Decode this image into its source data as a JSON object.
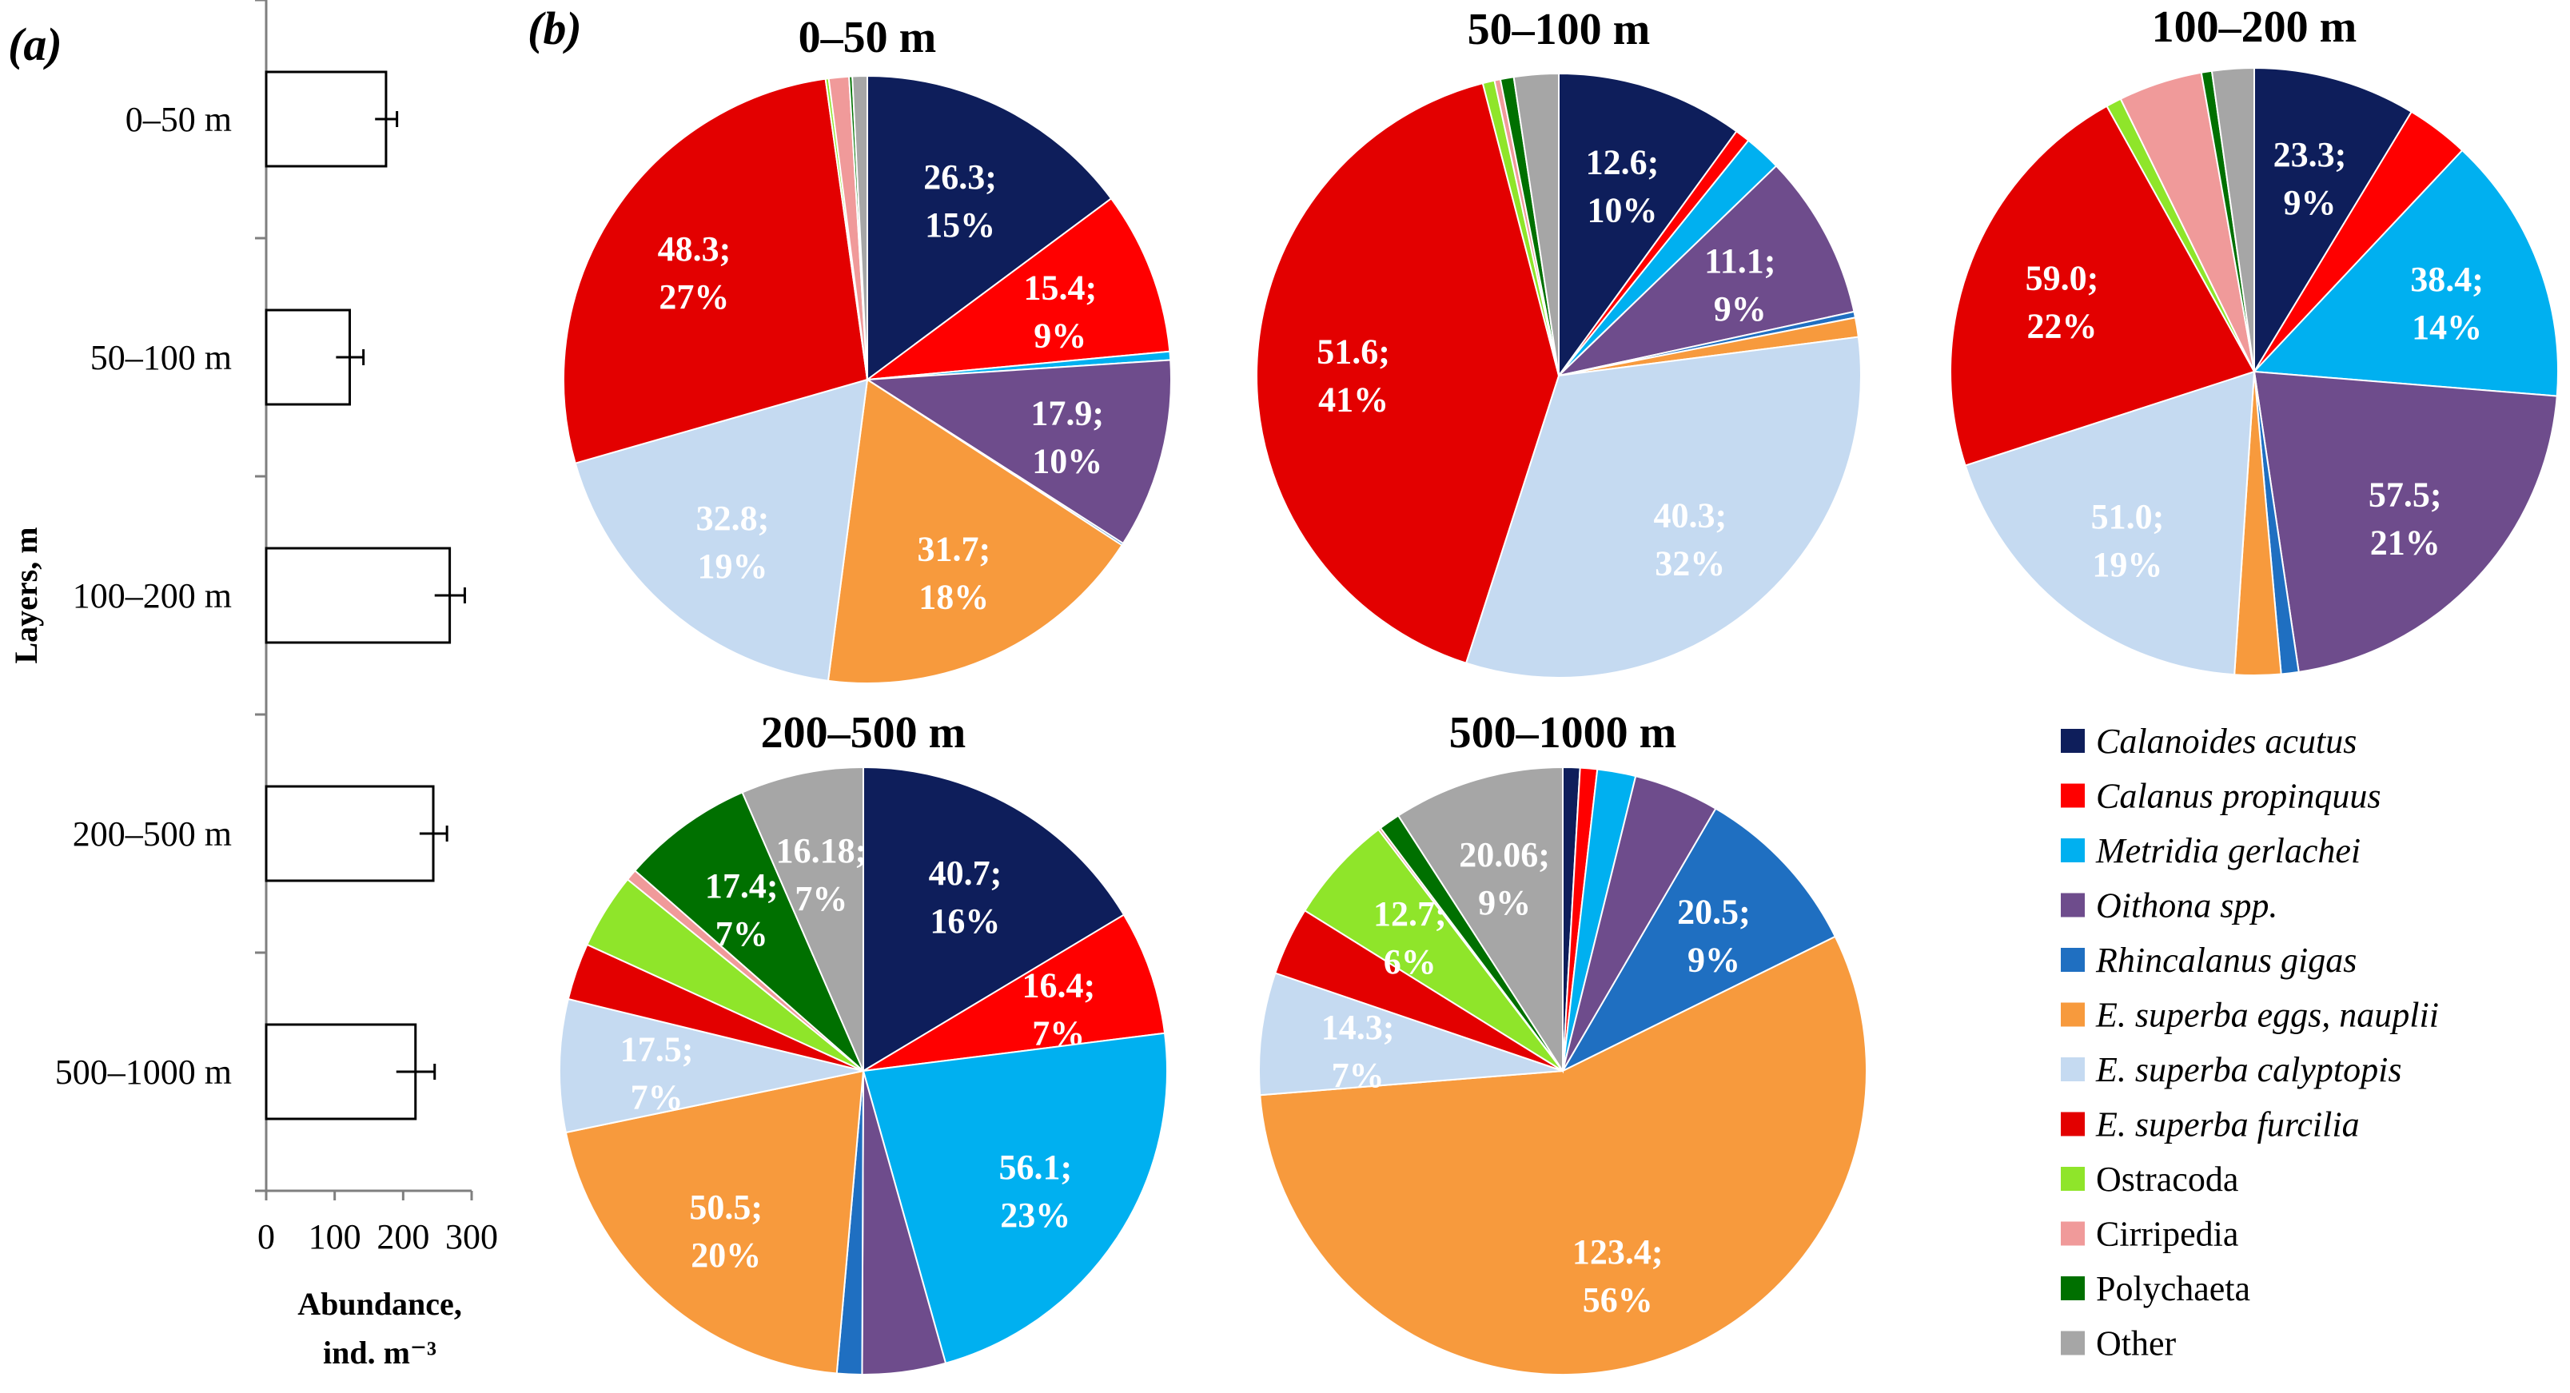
{
  "figure": {
    "panel_a_label": "(a)",
    "panel_b_label": "(b)"
  },
  "chart_data": [
    {
      "type": "bar",
      "orientation": "horizontal",
      "panel": "(a)",
      "categories": [
        "0–50 m",
        "50–100 m",
        "100–200 m",
        "200–500 m",
        "500–1000 m"
      ],
      "values": [
        175,
        122,
        268,
        244,
        218
      ],
      "errors": [
        16,
        20,
        22,
        20,
        28
      ],
      "xlim": [
        0,
        300
      ],
      "xticks": [
        "0",
        "100",
        "200",
        "300"
      ],
      "xlabel": [
        "Abundance,",
        "ind. m⁻³"
      ],
      "ylabel": "Layers, m",
      "bar_color": "#ffffff",
      "edge_color": "#000000"
    },
    {
      "type": "pie",
      "panel": "(b)",
      "legend": {
        "position": "bottom-right",
        "entries": [
          {
            "name": "Calanoides acutus",
            "color": "#0e1e5b",
            "italic": true
          },
          {
            "name": "Calanus propinquus",
            "color": "#ff0000",
            "italic": true
          },
          {
            "name": "Metridia gerlachei",
            "color": "#00b0f0",
            "italic": true
          },
          {
            "name": "Oithona spp.",
            "color": "#6e4c8c",
            "italic": true
          },
          {
            "name": "Rhincalanus gigas",
            "color": "#1f6fc1",
            "italic": true
          },
          {
            "name": "E. superba eggs, nauplii",
            "color": "#f79a3d",
            "italic": true
          },
          {
            "name": "E. superba calyptopis",
            "color": "#c5daf1",
            "italic": true
          },
          {
            "name": "E. superba furcilia",
            "color": "#e30000",
            "italic": true
          },
          {
            "name": "Ostracoda",
            "color": "#8fe52a",
            "italic": false
          },
          {
            "name": "Cirripedia",
            "color": "#f09a9a",
            "italic": false
          },
          {
            "name": "Polychaeta",
            "color": "#007000",
            "italic": false
          },
          {
            "name": "Other",
            "color": "#a6a6a6",
            "italic": false
          }
        ]
      },
      "pies": [
        {
          "title": "0–50 m",
          "values": [
            26.3,
            15.4,
            0.8,
            17.9,
            0.2,
            31.7,
            32.8,
            48.3,
            0.3,
            1.9,
            0.3,
            1.4
          ],
          "labels": [
            [
              "26.3;",
              "15%"
            ],
            [
              "15.4;",
              "9%"
            ],
            null,
            [
              "17.9;",
              "10%"
            ],
            null,
            [
              "31.7;",
              "18%"
            ],
            [
              "32.8;",
              "19%"
            ],
            [
              "48.3;",
              "27%"
            ],
            null,
            null,
            null,
            null
          ]
        },
        {
          "title": "50–100 m",
          "values": [
            12.6,
            1.0,
            2.5,
            11.1,
            0.4,
            1.3,
            40.3,
            51.6,
            0.8,
            0.4,
            0.9,
            3.0
          ],
          "labels": [
            [
              "12.6;",
              "10%"
            ],
            null,
            null,
            [
              "11.1;",
              "9%"
            ],
            null,
            null,
            [
              "40.3;",
              "32%"
            ],
            [
              "51.6;",
              "41%"
            ],
            null,
            null,
            null,
            null
          ]
        },
        {
          "title": "100–200 m",
          "values": [
            23.3,
            9.0,
            38.4,
            57.5,
            2.5,
            6.6,
            51.0,
            59.0,
            2.2,
            12.0,
            1.5,
            6.0
          ],
          "labels": [
            [
              "23.3;",
              "9%"
            ],
            null,
            [
              "38.4;",
              "14%"
            ],
            [
              "57.5;",
              "21%"
            ],
            null,
            null,
            [
              "51.0;",
              "19%"
            ],
            [
              "59.0;",
              "22%"
            ],
            null,
            null,
            null,
            null
          ]
        },
        {
          "title": "200–500 m",
          "values": [
            40.7,
            16.4,
            56.1,
            11.0,
            3.3,
            50.5,
            17.5,
            7.5,
            10.0,
            1.5,
            17.4,
            16.18
          ],
          "labels": [
            [
              "40.7;",
              "16%"
            ],
            [
              "16.4;",
              "7%"
            ],
            [
              "56.1;",
              "23%"
            ],
            null,
            null,
            [
              "50.5;",
              "20%"
            ],
            [
              "17.5;",
              "7%"
            ],
            null,
            null,
            null,
            [
              "17.4;",
              "7%"
            ],
            [
              "16.18;",
              "7%"
            ]
          ]
        },
        {
          "title": "500–1000 m",
          "values": [
            2.0,
            2.0,
            4.5,
            10.0,
            20.5,
            123.4,
            14.3,
            8.0,
            12.7,
            0.3,
            2.5,
            20.06
          ],
          "labels": [
            null,
            null,
            null,
            null,
            [
              "20.5;",
              "9%"
            ],
            [
              "123.4;",
              "56%"
            ],
            [
              "14.3;",
              "7%"
            ],
            null,
            [
              "12.7;",
              "6%"
            ],
            null,
            null,
            [
              "20.06;",
              "9%"
            ]
          ]
        }
      ]
    }
  ]
}
